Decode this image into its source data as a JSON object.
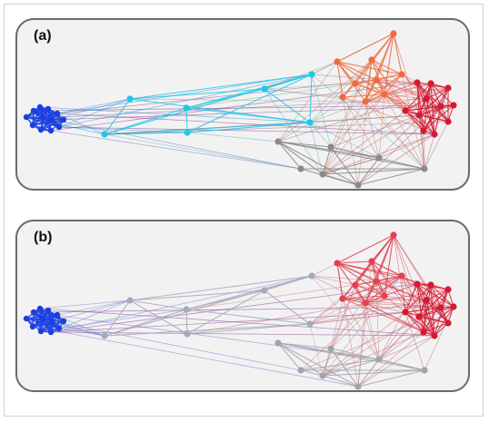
{
  "panels": [
    {
      "label": "(a)",
      "colors": {
        "blue": "#1a3fe0",
        "cyan": "#1ec8e6",
        "gray": "#8a8a8a",
        "orange": "#ef6b3c",
        "red": "#d41a33"
      }
    },
    {
      "label": "(b)",
      "colors": {
        "blue": "#1a3fe0",
        "cyan": "#a8a8bc",
        "gray": "#a3a3ad",
        "orange": "#e2414f",
        "red": "#d41a33"
      }
    }
  ]
}
